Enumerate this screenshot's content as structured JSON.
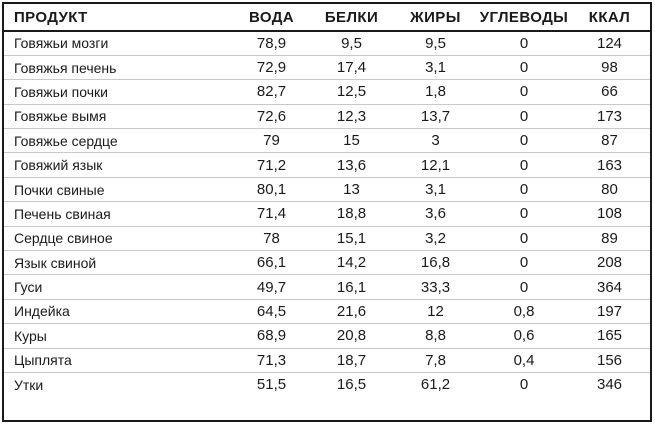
{
  "chart_data": {
    "type": "table",
    "columns": [
      "ПРОДУКТ",
      "ВОДА",
      "БЕЛКИ",
      "ЖИРЫ",
      "УГЛЕВОДЫ",
      "ККАЛ"
    ],
    "rows": [
      [
        "Говяжьи мозги",
        "78,9",
        "9,5",
        "9,5",
        "0",
        "124"
      ],
      [
        "Говяжья печень",
        "72,9",
        "17,4",
        "3,1",
        "0",
        "98"
      ],
      [
        "Говяжьи почки",
        "82,7",
        "12,5",
        "1,8",
        "0",
        "66"
      ],
      [
        "Говяжье вымя",
        "72,6",
        "12,3",
        "13,7",
        "0",
        "173"
      ],
      [
        "Говяжье сердце",
        "79",
        "15",
        "3",
        "0",
        "87"
      ],
      [
        "Говяжий язык",
        "71,2",
        "13,6",
        "12,1",
        "0",
        "163"
      ],
      [
        "Почки свиные",
        "80,1",
        "13",
        "3,1",
        "0",
        "80"
      ],
      [
        "Печень свиная",
        "71,4",
        "18,8",
        "3,6",
        "0",
        "108"
      ],
      [
        "Сердце свиное",
        "78",
        "15,1",
        "3,2",
        "0",
        "89"
      ],
      [
        "Язык свиной",
        "66,1",
        "14,2",
        "16,8",
        "0",
        "208"
      ],
      [
        "Гуси",
        "49,7",
        "16,1",
        "33,3",
        "0",
        "364"
      ],
      [
        "Индейка",
        "64,5",
        "21,6",
        "12",
        "0,8",
        "197"
      ],
      [
        "Куры",
        "68,9",
        "20,8",
        "8,8",
        "0,6",
        "165"
      ],
      [
        "Цыплята",
        "71,3",
        "18,7",
        "7,8",
        "0,4",
        "156"
      ],
      [
        "Утки",
        "51,5",
        "16,5",
        "61,2",
        "0",
        "346"
      ]
    ],
    "layout": {
      "grid": "horizontal row separators only",
      "header_rule": "heavy",
      "outer_border": true
    }
  },
  "colors": {
    "text": "#1a1a1a",
    "border": "#1a1a1a",
    "row_separator": "#c9c9c9",
    "background": "#ffffff"
  }
}
